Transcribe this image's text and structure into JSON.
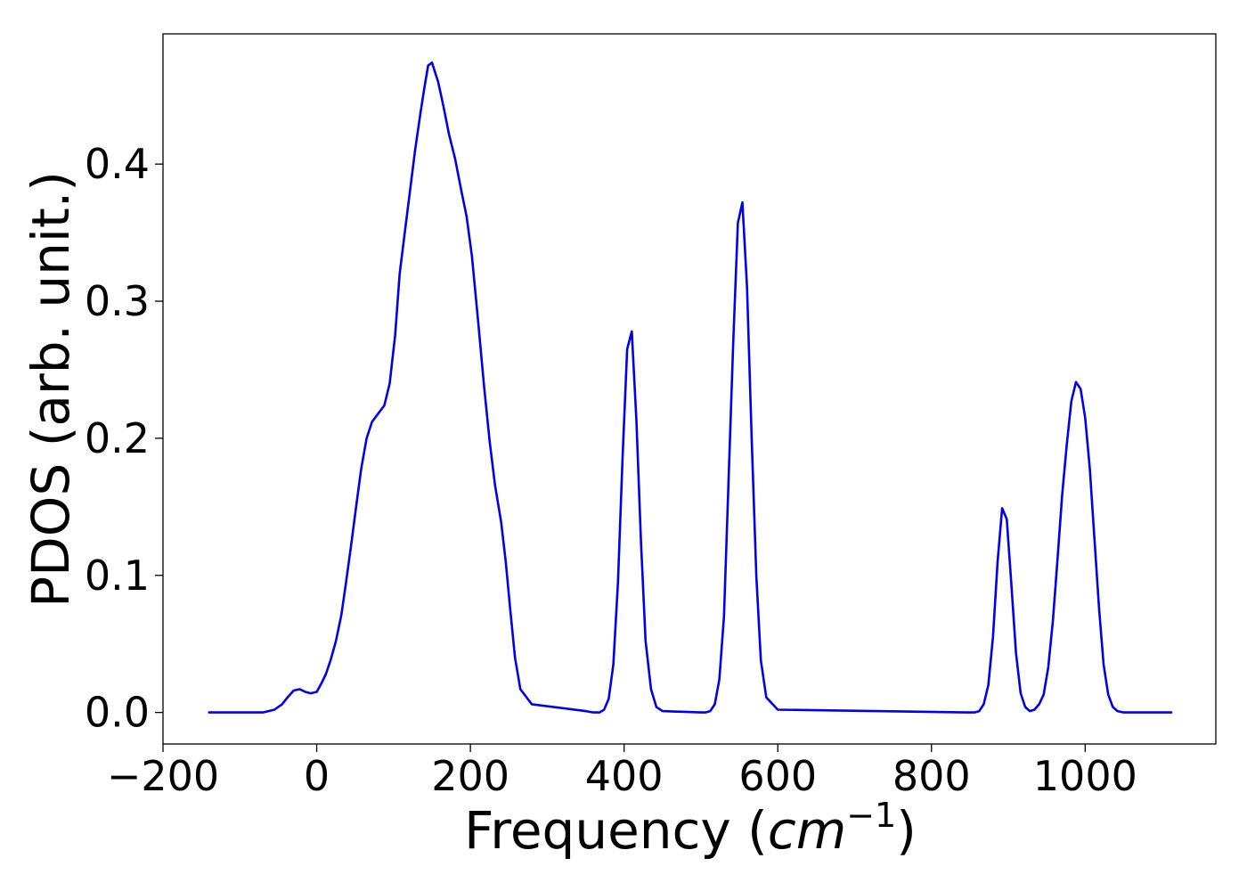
{
  "chart_data": {
    "type": "line",
    "title": "",
    "xlabel": {
      "prefix": "Frequency (",
      "var": "cm",
      "exp": "−1",
      "suffix": ")"
    },
    "ylabel": "PDOS (arb. unit.)",
    "xlim": [
      -200,
      1170
    ],
    "ylim": [
      -0.023,
      0.495
    ],
    "x_ticks": [
      -200,
      0,
      200,
      400,
      600,
      800,
      1000
    ],
    "x_tick_labels": [
      "−200",
      "0",
      "200",
      "400",
      "600",
      "800",
      "1000"
    ],
    "y_ticks": [
      0.0,
      0.1,
      0.2,
      0.3,
      0.4
    ],
    "y_tick_labels": [
      "0.0",
      "0.1",
      "0.2",
      "0.3",
      "0.4"
    ],
    "grid": false,
    "legend": "none",
    "series": [
      {
        "color": "#0000ee",
        "x": [
          -140,
          -70,
          -55,
          -45,
          -38,
          -30,
          -22,
          -15,
          -8,
          0,
          6,
          12,
          18,
          25,
          32,
          38,
          45,
          52,
          58,
          65,
          72,
          80,
          88,
          95,
          102,
          108,
          115,
          122,
          128,
          135,
          140,
          145,
          150,
          158,
          165,
          172,
          180,
          188,
          195,
          202,
          210,
          218,
          225,
          232,
          240,
          246,
          252,
          258,
          265,
          280,
          350,
          360,
          368,
          374,
          380,
          386,
          392,
          398,
          404,
          410,
          416,
          422,
          428,
          435,
          442,
          450,
          500,
          506,
          512,
          518,
          524,
          530,
          536,
          542,
          548,
          554,
          560,
          566,
          572,
          578,
          585,
          600,
          845,
          850,
          856,
          862,
          868,
          874,
          880,
          886,
          892,
          898,
          904,
          910,
          916,
          922,
          928,
          934,
          940,
          946,
          952,
          958,
          964,
          970,
          976,
          982,
          988,
          994,
          1000,
          1006,
          1012,
          1018,
          1024,
          1030,
          1036,
          1042,
          1050,
          1112
        ],
        "y": [
          0.0,
          0.0,
          0.002,
          0.006,
          0.011,
          0.016,
          0.017,
          0.015,
          0.014,
          0.015,
          0.021,
          0.028,
          0.038,
          0.052,
          0.071,
          0.094,
          0.123,
          0.153,
          0.178,
          0.2,
          0.212,
          0.218,
          0.224,
          0.24,
          0.275,
          0.32,
          0.352,
          0.383,
          0.41,
          0.437,
          0.455,
          0.472,
          0.474,
          0.46,
          0.442,
          0.422,
          0.404,
          0.381,
          0.362,
          0.333,
          0.286,
          0.237,
          0.198,
          0.166,
          0.139,
          0.11,
          0.074,
          0.04,
          0.017,
          0.006,
          0.001,
          0.0,
          0.0,
          0.002,
          0.01,
          0.035,
          0.095,
          0.185,
          0.265,
          0.278,
          0.213,
          0.125,
          0.052,
          0.017,
          0.004,
          0.001,
          0.0,
          0.0,
          0.001,
          0.006,
          0.024,
          0.07,
          0.17,
          0.27,
          0.357,
          0.372,
          0.31,
          0.2,
          0.1,
          0.038,
          0.011,
          0.002,
          0.0,
          0.0,
          0.0,
          0.001,
          0.006,
          0.02,
          0.055,
          0.11,
          0.149,
          0.141,
          0.093,
          0.043,
          0.014,
          0.004,
          0.001,
          0.002,
          0.006,
          0.013,
          0.033,
          0.067,
          0.112,
          0.158,
          0.195,
          0.227,
          0.241,
          0.236,
          0.215,
          0.178,
          0.127,
          0.076,
          0.035,
          0.013,
          0.004,
          0.001,
          0.0,
          0.0
        ]
      }
    ]
  }
}
